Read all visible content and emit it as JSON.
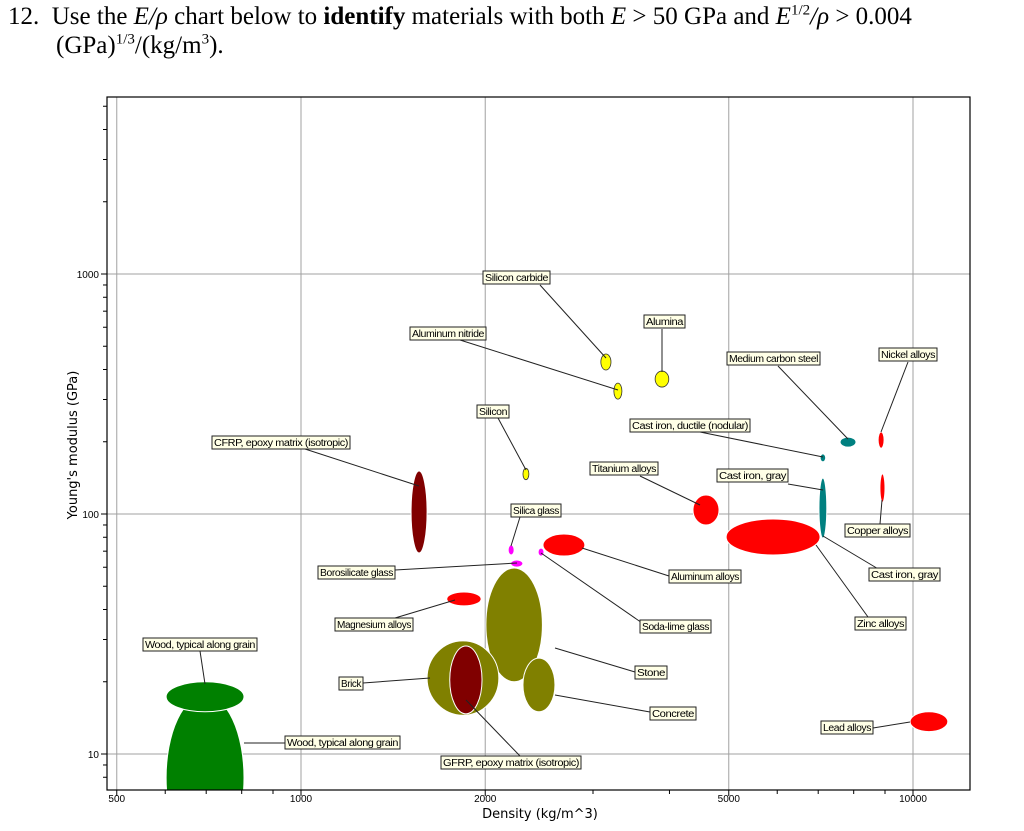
{
  "question": {
    "number": "12.",
    "t1": "Use the",
    "t2": "E/ρ",
    "t3": "chart below to",
    "t4": "identify",
    "t5": "materials with both",
    "t6": "E",
    "t7": "> 50 GPa and",
    "t8": "E",
    "t9": "1/2",
    "t10": "/ρ",
    "t11": "> 0.004",
    "t12": "(GPa)",
    "t13": "1/3",
    "t14": "/(kg/m",
    "t15": "3",
    "t16": ")."
  },
  "chart_data": {
    "type": "scatter",
    "title": "",
    "xlabel": "Density (kg/m^3)",
    "ylabel": "Young's modulus (GPa)",
    "xscale": "log",
    "yscale": "log",
    "xlim": [
      482,
      12400
    ],
    "ylim": [
      7.1,
      5400
    ],
    "xticks": [
      500,
      1000,
      2000,
      5000,
      10000
    ],
    "yticks": [
      10,
      100,
      1000
    ],
    "grid": true,
    "colors": {
      "ceramic": "#ffff00",
      "metal": "#ff0000",
      "cast_iron_steel": "#008080",
      "composite": "#800000",
      "glass": "#ff00ff",
      "mineral": "#808000",
      "wood": "#008000"
    },
    "materials": [
      {
        "name": "Silicon carbide",
        "density": [
          3090,
          3210
        ],
        "modulus": [
          398,
          464
        ],
        "color": "#ffff00"
      },
      {
        "name": "Aluminum nitride",
        "density": [
          3245,
          3345
        ],
        "modulus": [
          301,
          351
        ],
        "color": "#ffff00"
      },
      {
        "name": "Alumina",
        "density": [
          3790,
          3990
        ],
        "modulus": [
          338,
          394
        ],
        "color": "#ffff00"
      },
      {
        "name": "Medium carbon steel",
        "density": [
          7600,
          8070
        ],
        "modulus": [
          190,
          209
        ],
        "color": "#008080"
      },
      {
        "name": "Nickel alloys",
        "density": [
          8770,
          8970
        ],
        "modulus": [
          188,
          220
        ],
        "color": "#ff0000"
      },
      {
        "name": "Silicon",
        "density": [
          2305,
          2357
        ],
        "modulus": [
          139,
          155
        ],
        "color": "#ffff00"
      },
      {
        "name": "Cast iron, ductile (nodular)",
        "density": [
          7050,
          7200
        ],
        "modulus": [
          165,
          178
        ],
        "color": "#008080"
      },
      {
        "name": "CFRP, epoxy matrix (isotropic)",
        "density": [
          1513,
          1607
        ],
        "modulus": [
          68.8,
          151
        ],
        "color": "#800000"
      },
      {
        "name": "Titanium alloys",
        "density": [
          4370,
          4820
        ],
        "modulus": [
          90,
          120
        ],
        "color": "#ff0000"
      },
      {
        "name": "Cast iron, gray",
        "density": [
          7020,
          7230
        ],
        "modulus": [
          79.4,
          141
        ],
        "color": "#008080"
      },
      {
        "name": "Copper alloys",
        "density": [
          8830,
          9000
        ],
        "modulus": [
          112,
          147
        ],
        "color": "#ff0000"
      },
      {
        "name": "Silica glass",
        "density": [
          2180,
          2230
        ],
        "modulus": [
          67.5,
          74.3
        ],
        "color": "#ff00ff"
      },
      {
        "name": "Borosilicate glass",
        "density": [
          2200,
          2305
        ],
        "modulus": [
          60.1,
          64.3
        ],
        "color": "#ff00ff"
      },
      {
        "name": "Aluminum alloys",
        "density": [
          2485,
          2910
        ],
        "modulus": [
          66.8,
          82.5
        ],
        "color": "#ff0000"
      },
      {
        "name": "Magnesium alloys",
        "density": [
          1730,
          1970
        ],
        "modulus": [
          41.4,
          47.3
        ],
        "color": "#ff0000"
      },
      {
        "name": "Soda-lime glass",
        "density": [
          2440,
          2495
        ],
        "modulus": [
          66.8,
          72.1
        ],
        "color": "#ff00ff"
      },
      {
        "name": "Zinc alloys",
        "density": [
          4950,
          7050
        ],
        "modulus": [
          67.5,
          95.3
        ],
        "color": "#ff0000"
      },
      {
        "name": "Wood, typical along grain",
        "density": [
          602,
          807
        ],
        "modulus": [
          3.6,
          17.6
        ],
        "color": "#008000"
      },
      {
        "name": "Wood, typical along grain",
        "density": [
          602,
          807
        ],
        "modulus": [
          15,
          20
        ],
        "color": "#008000"
      },
      {
        "name": "Stone",
        "density": [
          2005,
          2480
        ],
        "modulus": [
          20,
          59.6
        ],
        "color": "#808000"
      },
      {
        "name": "Concrete",
        "density": [
          2305,
          2600
        ],
        "modulus": [
          15,
          25.1
        ],
        "color": "#808000"
      },
      {
        "name": "Brick",
        "density": [
          1607,
          2105
        ],
        "modulus": [
          14.5,
          29.6
        ],
        "color": "#808000"
      },
      {
        "name": "GFRP, epoxy matrix (isotropic)",
        "density": [
          1750,
          1976
        ],
        "modulus": [
          14.7,
          28.2
        ],
        "color": "#800000"
      },
      {
        "name": "Lead alloys",
        "density": [
          9890,
          11400
        ],
        "modulus": [
          12.4,
          15
        ],
        "color": "#ff0000"
      }
    ],
    "labels": [
      "Silicon carbide",
      "Aluminum nitride",
      "Alumina",
      "Medium carbon steel",
      "Nickel alloys",
      "Silicon",
      "Cast iron, ductile (nodular)",
      "CFRP, epoxy matrix (isotropic)",
      "Titanium alloys",
      "Cast iron, gray",
      "Copper alloys",
      "Silica glass",
      "Borosilicate glass",
      "Aluminum alloys",
      "Cast iron, gray",
      "Magnesium alloys",
      "Soda-lime glass",
      "Zinc alloys",
      "Wood, typical along grain",
      "Stone",
      "Brick",
      "Concrete",
      "Lead alloys",
      "Wood, typical along grain",
      "GFRP, epoxy matrix (isotropic)"
    ]
  }
}
